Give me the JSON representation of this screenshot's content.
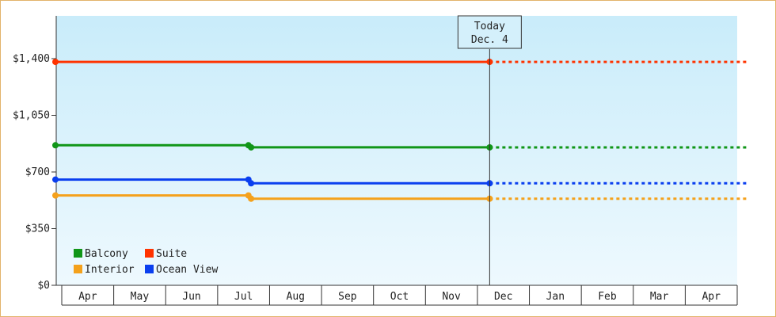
{
  "chart_data": {
    "type": "line",
    "title": "",
    "xlabel": "",
    "ylabel": "",
    "ylim": [
      0,
      1400
    ],
    "y_ticks": [
      0,
      350,
      700,
      1050,
      1400
    ],
    "y_tick_labels": [
      "$0",
      "$350",
      "$700",
      "$1,050",
      "$1,400"
    ],
    "x_months": [
      "Apr",
      "May",
      "Jun",
      "Jul",
      "Aug",
      "Sep",
      "Oct",
      "Nov",
      "Dec",
      "Jan",
      "Feb",
      "Mar",
      "Apr"
    ],
    "today_label": [
      "Today",
      "Dec. 4"
    ],
    "today_month_index": 8.1,
    "legend_position": "bottom-left",
    "series": [
      {
        "name": "Balcony",
        "color": "#109618",
        "points": [
          [
            0,
            865
          ],
          [
            3.6,
            865
          ],
          [
            3.65,
            852
          ],
          [
            8.1,
            852
          ]
        ],
        "projection_end": 12.9,
        "projection_value": 852
      },
      {
        "name": "Suite",
        "color": "#ff3300",
        "points": [
          [
            0,
            1380
          ],
          [
            8.1,
            1380
          ]
        ],
        "projection_end": 12.9,
        "projection_value": 1380
      },
      {
        "name": "Interior",
        "color": "#f4a11c",
        "points": [
          [
            0,
            555
          ],
          [
            3.6,
            555
          ],
          [
            3.65,
            535
          ],
          [
            8.1,
            535
          ]
        ],
        "projection_end": 12.9,
        "projection_value": 535
      },
      {
        "name": "Ocean View",
        "color": "#0a3fef",
        "points": [
          [
            0,
            653
          ],
          [
            3.6,
            653
          ],
          [
            3.65,
            630
          ],
          [
            8.1,
            630
          ]
        ],
        "projection_end": 12.9,
        "projection_value": 630
      }
    ]
  }
}
